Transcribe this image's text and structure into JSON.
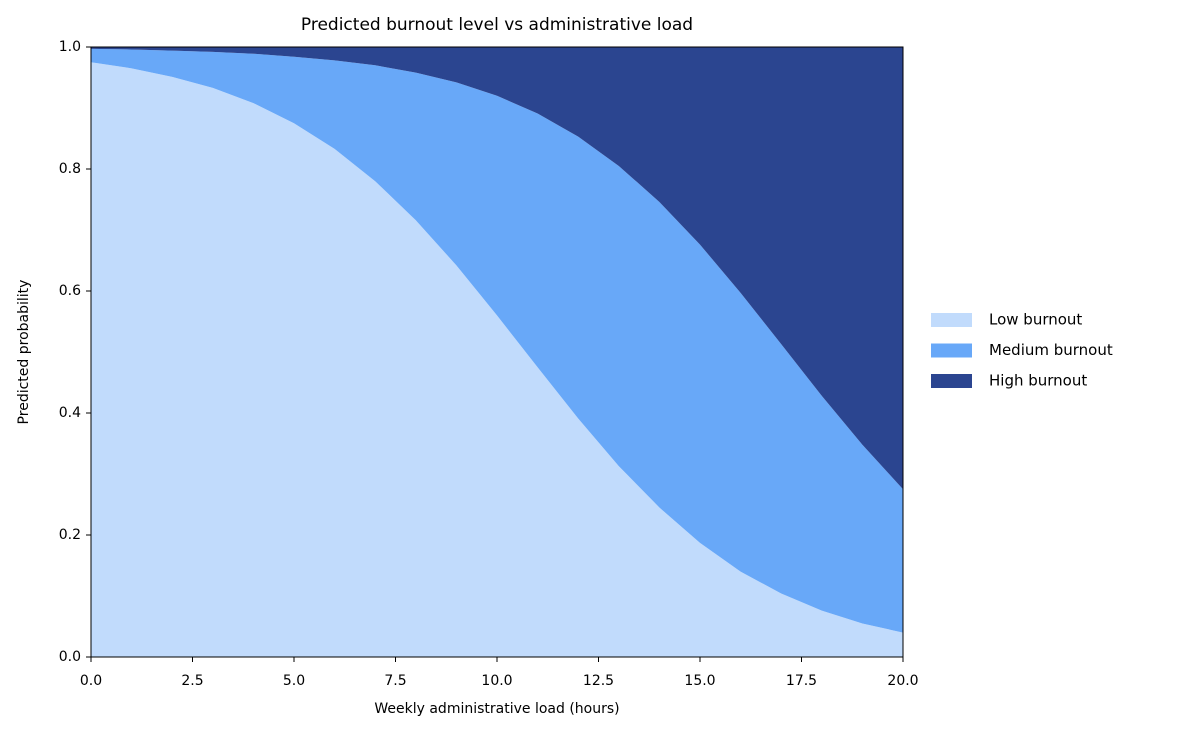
{
  "chart_data": {
    "type": "stacked_area",
    "title": "Predicted burnout level vs administrative load",
    "x_label": "Weekly administrative load (hours)",
    "y_label": "Predicted probability",
    "x": [
      0,
      1,
      2,
      3,
      4,
      5,
      6,
      7,
      8,
      9,
      10,
      11,
      12,
      13,
      14,
      15,
      16,
      17,
      18,
      19,
      20
    ],
    "series": [
      {
        "name": "Low burnout",
        "color": "#c1dbfc",
        "values": [
          0.975,
          0.965,
          0.951,
          0.933,
          0.908,
          0.875,
          0.833,
          0.78,
          0.716,
          0.642,
          0.56,
          0.475,
          0.391,
          0.313,
          0.245,
          0.187,
          0.14,
          0.104,
          0.076,
          0.055,
          0.04
        ]
      },
      {
        "name": "Medium burnout",
        "color": "#68a8f8",
        "values": [
          0.022,
          0.031,
          0.043,
          0.059,
          0.081,
          0.109,
          0.145,
          0.19,
          0.242,
          0.3,
          0.36,
          0.416,
          0.462,
          0.492,
          0.501,
          0.489,
          0.457,
          0.409,
          0.352,
          0.293,
          0.235
        ]
      },
      {
        "name": "High burnout",
        "color": "#2b4590",
        "values": [
          0.003,
          0.004,
          0.006,
          0.008,
          0.011,
          0.016,
          0.022,
          0.03,
          0.042,
          0.058,
          0.08,
          0.109,
          0.147,
          0.195,
          0.254,
          0.324,
          0.403,
          0.487,
          0.572,
          0.652,
          0.725
        ]
      }
    ],
    "xlim": [
      0,
      20
    ],
    "ylim": [
      0,
      1
    ],
    "xticks": [
      {
        "value": 0,
        "label": "0.0"
      },
      2.5,
      {
        "value": 5,
        "label": "5.0"
      },
      7.5,
      {
        "value": 10,
        "label": "10.0"
      },
      12.5,
      {
        "value": 15,
        "label": "15.0"
      },
      17.5,
      {
        "value": 20,
        "label": "20.0"
      }
    ],
    "yticks": [
      {
        "value": 0,
        "label": "0.0"
      },
      0.2,
      0.4,
      0.6,
      0.8,
      {
        "value": 1,
        "label": "1.0"
      }
    ],
    "grid": false,
    "legend": "right"
  }
}
